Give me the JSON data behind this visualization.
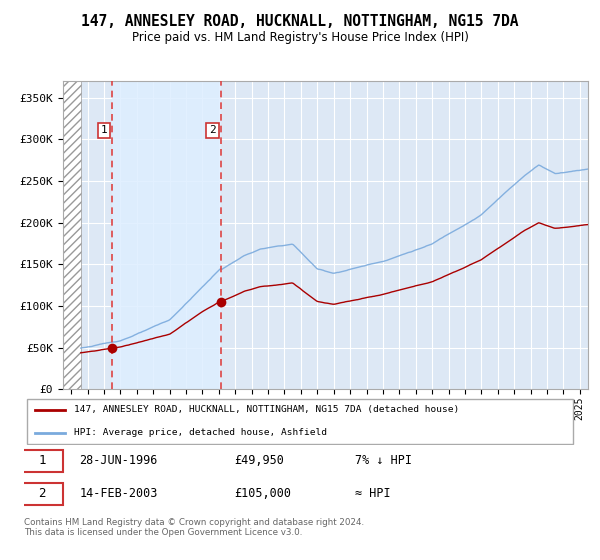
{
  "title": "147, ANNESLEY ROAD, HUCKNALL, NOTTINGHAM, NG15 7DA",
  "subtitle": "Price paid vs. HM Land Registry's House Price Index (HPI)",
  "ylim": [
    0,
    370000
  ],
  "yticks": [
    0,
    50000,
    100000,
    150000,
    200000,
    250000,
    300000,
    350000
  ],
  "ytick_labels": [
    "£0",
    "£50K",
    "£100K",
    "£150K",
    "£200K",
    "£250K",
    "£300K",
    "£350K"
  ],
  "sale1_date": 1996.49,
  "sale1_price": 49950,
  "sale1_label": "1",
  "sale2_date": 2003.12,
  "sale2_price": 105000,
  "sale2_label": "2",
  "hpi_color": "#7aaadd",
  "price_color": "#aa0000",
  "vline_color": "#dd4444",
  "background_chart": "#dde8f5",
  "background_between": "#ddeeff",
  "grid_color": "#ffffff",
  "legend_label1": "147, ANNESLEY ROAD, HUCKNALL, NOTTINGHAM, NG15 7DA (detached house)",
  "legend_label2": "HPI: Average price, detached house, Ashfield",
  "table_row1": [
    "1",
    "28-JUN-1996",
    "£49,950",
    "7% ↓ HPI"
  ],
  "table_row2": [
    "2",
    "14-FEB-2003",
    "£105,000",
    "≈ HPI"
  ],
  "footnote": "Contains HM Land Registry data © Crown copyright and database right 2024.\nThis data is licensed under the Open Government Licence v3.0.",
  "xlim_start": 1993.5,
  "xlim_end": 2025.5,
  "hatch_end": 1994.58
}
